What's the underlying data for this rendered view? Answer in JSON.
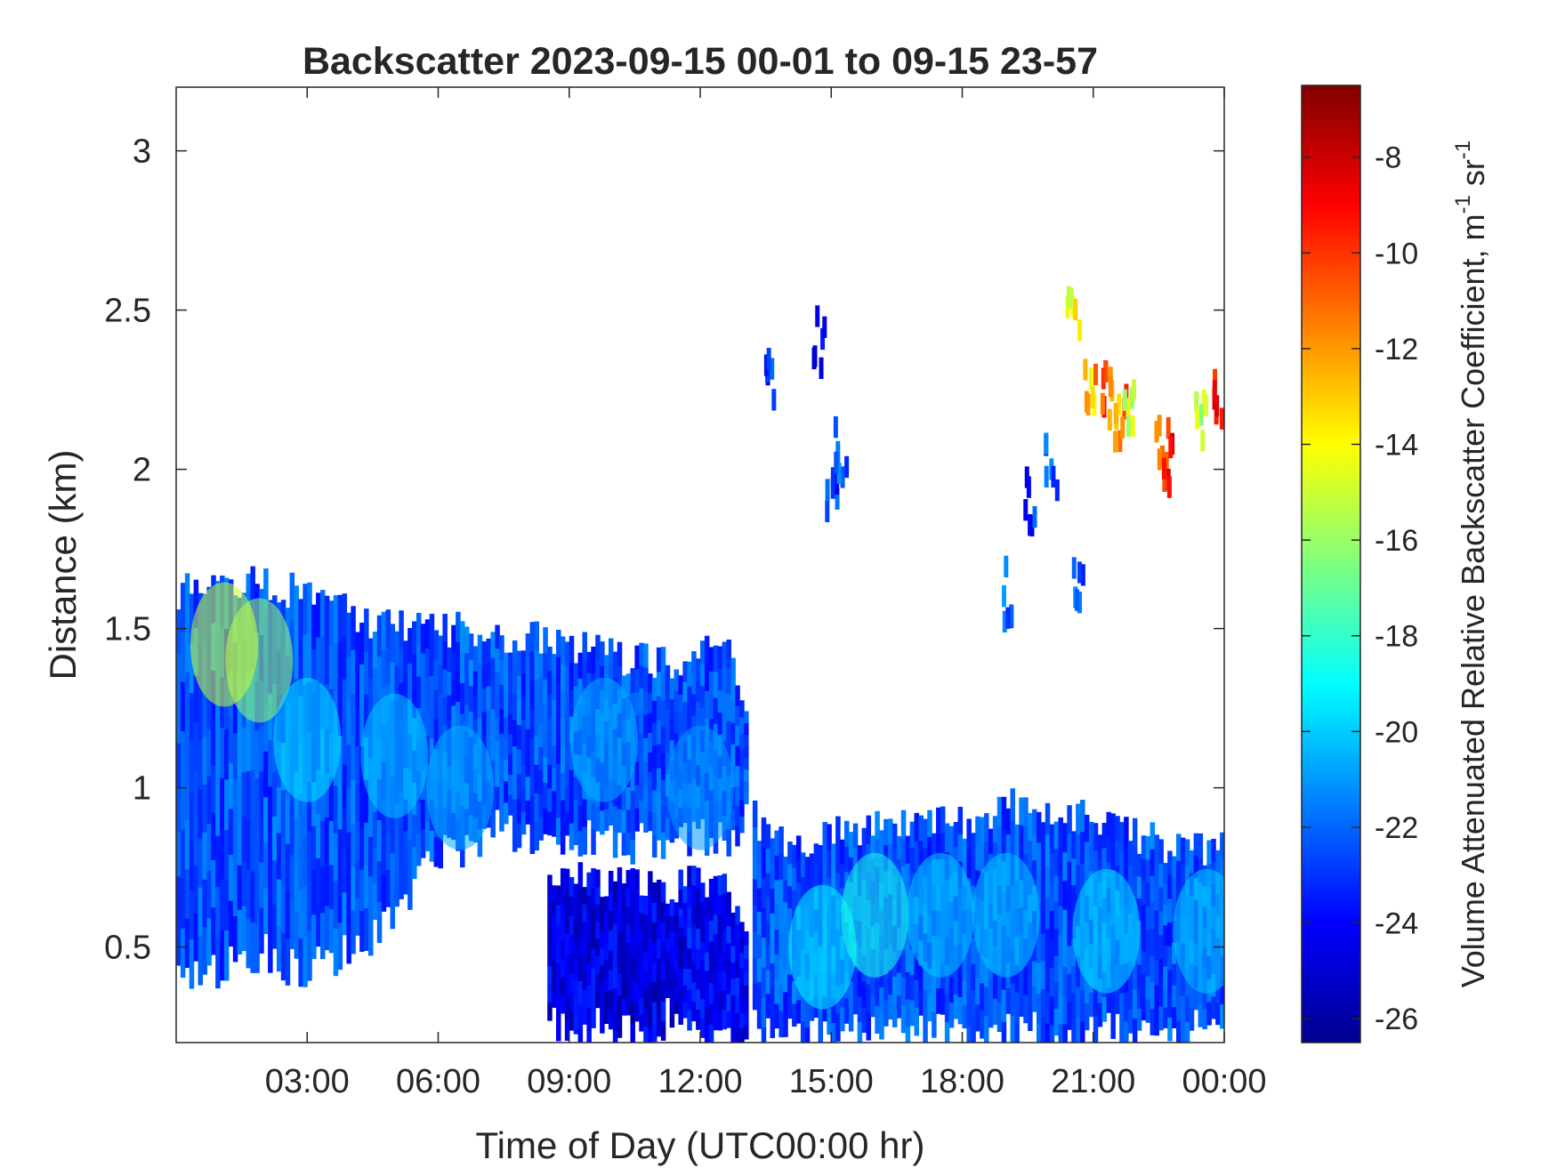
{
  "chart_data": {
    "type": "heatmap",
    "title": "Backscatter 2023-09-15 00-01 to 09-15 23-57",
    "xlabel": "Time of Day (UTC00:00 hr)",
    "ylabel": "Distance (km)",
    "colorbar_label": "Volume Attenuated Relative Backscatter Coefficient, m",
    "colorbar_label_sup1": "-1",
    "colorbar_label_mid": " sr",
    "colorbar_label_sup2": "-1",
    "colormap": "jet",
    "xlim": [
      0.0,
      24.0
    ],
    "ylim": [
      0.2,
      3.2
    ],
    "clim": [
      -26.5,
      -6.5
    ],
    "x_ticks": [
      {
        "value": 3,
        "label": "03:00"
      },
      {
        "value": 6,
        "label": "06:00"
      },
      {
        "value": 9,
        "label": "09:00"
      },
      {
        "value": 12,
        "label": "12:00"
      },
      {
        "value": 15,
        "label": "15:00"
      },
      {
        "value": 18,
        "label": "18:00"
      },
      {
        "value": 21,
        "label": "21:00"
      },
      {
        "value": 24,
        "label": "00:00"
      }
    ],
    "y_ticks": [
      {
        "value": 0.5,
        "label": "0.5"
      },
      {
        "value": 1.0,
        "label": "1"
      },
      {
        "value": 1.5,
        "label": "1.5"
      },
      {
        "value": 2.0,
        "label": "2"
      },
      {
        "value": 2.5,
        "label": "2.5"
      },
      {
        "value": 3.0,
        "label": "3"
      }
    ],
    "colorbar_ticks": [
      {
        "value": -8,
        "label": "-8"
      },
      {
        "value": -10,
        "label": "-10"
      },
      {
        "value": -12,
        "label": "-12"
      },
      {
        "value": -14,
        "label": "-14"
      },
      {
        "value": -16,
        "label": "-16"
      },
      {
        "value": -18,
        "label": "-18"
      },
      {
        "value": -20,
        "label": "-20"
      },
      {
        "value": -22,
        "label": "-22"
      },
      {
        "value": -24,
        "label": "-24"
      },
      {
        "value": -26,
        "label": "-26"
      }
    ],
    "layers": [
      {
        "x": [
          0.0,
          2.0,
          3.0,
          4.5,
          6.0,
          7.5,
          9.0,
          10.5,
          11.5,
          12.5,
          13.0
        ],
        "top": [
          1.62,
          1.65,
          1.6,
          1.52,
          1.5,
          1.48,
          1.45,
          1.4,
          1.4,
          1.45,
          1.3
        ],
        "bottom": [
          0.35,
          0.45,
          0.4,
          0.5,
          0.75,
          0.85,
          0.8,
          0.8,
          0.8,
          0.8,
          0.85
        ],
        "value": -22.5
      },
      {
        "x": [
          13.2,
          14.0,
          15.0,
          16.0,
          17.0,
          18.0,
          19.0,
          20.0,
          21.0,
          22.0,
          23.0,
          24.0
        ],
        "top": [
          0.9,
          0.82,
          0.85,
          0.88,
          0.9,
          0.9,
          0.95,
          0.92,
          0.9,
          0.85,
          0.8,
          0.82
        ],
        "bottom": [
          0.2,
          0.2,
          0.2,
          0.2,
          0.2,
          0.2,
          0.2,
          0.2,
          0.2,
          0.2,
          0.2,
          0.2
        ],
        "value": -22.5
      },
      {
        "x": [
          11.5,
          12.0,
          12.5,
          13.0
        ],
        "top": [
          0.7,
          0.72,
          0.7,
          0.6
        ],
        "bottom": [
          0.2,
          0.2,
          0.2,
          0.2
        ],
        "value": -24.0
      },
      {
        "x": [
          8.5,
          9.0,
          10.0,
          11.0,
          11.5
        ],
        "top": [
          0.75,
          0.72,
          0.7,
          0.68,
          0.6
        ],
        "bottom": [
          0.25,
          0.22,
          0.2,
          0.22,
          0.3
        ],
        "value": -24.5
      }
    ],
    "hotspots": [
      {
        "x": 1.9,
        "y": 1.4,
        "value": -16
      },
      {
        "x": 1.1,
        "y": 1.45,
        "value": -15
      },
      {
        "x": 3.0,
        "y": 1.15,
        "value": -19.5
      },
      {
        "x": 5.0,
        "y": 1.1,
        "value": -20
      },
      {
        "x": 6.5,
        "y": 1.0,
        "value": -20.5
      },
      {
        "x": 9.8,
        "y": 1.15,
        "value": -20.5
      },
      {
        "x": 12.0,
        "y": 1.0,
        "value": -21
      },
      {
        "x": 14.8,
        "y": 0.5,
        "value": -19
      },
      {
        "x": 16.0,
        "y": 0.6,
        "value": -18.5
      },
      {
        "x": 17.5,
        "y": 0.6,
        "value": -20
      },
      {
        "x": 19.0,
        "y": 0.6,
        "value": -20
      },
      {
        "x": 21.3,
        "y": 0.55,
        "value": -19.5
      },
      {
        "x": 23.6,
        "y": 0.55,
        "value": -20
      }
    ],
    "upper_clouds": [
      {
        "x": 20.5,
        "y": 2.45,
        "value": -14.5
      },
      {
        "x": 20.9,
        "y": 2.28,
        "value": -13
      },
      {
        "x": 21.1,
        "y": 2.22,
        "value": -10
      },
      {
        "x": 21.4,
        "y": 2.2,
        "value": -12
      },
      {
        "x": 21.6,
        "y": 2.15,
        "value": -11
      },
      {
        "x": 21.8,
        "y": 2.2,
        "value": -15
      },
      {
        "x": 22.55,
        "y": 2.05,
        "value": -11.5
      },
      {
        "x": 22.7,
        "y": 2.0,
        "value": -9
      },
      {
        "x": 23.4,
        "y": 2.15,
        "value": -15
      },
      {
        "x": 23.8,
        "y": 2.2,
        "value": -9.5
      },
      {
        "x": 19.0,
        "y": 1.6,
        "value": -22
      },
      {
        "x": 19.5,
        "y": 1.9,
        "value": -23
      },
      {
        "x": 20.0,
        "y": 2.0,
        "value": -22
      },
      {
        "x": 20.6,
        "y": 1.6,
        "value": -22.5
      },
      {
        "x": 15.0,
        "y": 1.9,
        "value": -23
      },
      {
        "x": 15.2,
        "y": 2.05,
        "value": -22.5
      },
      {
        "x": 13.5,
        "y": 2.3,
        "value": -23
      },
      {
        "x": 14.7,
        "y": 2.4,
        "value": -24
      }
    ]
  }
}
